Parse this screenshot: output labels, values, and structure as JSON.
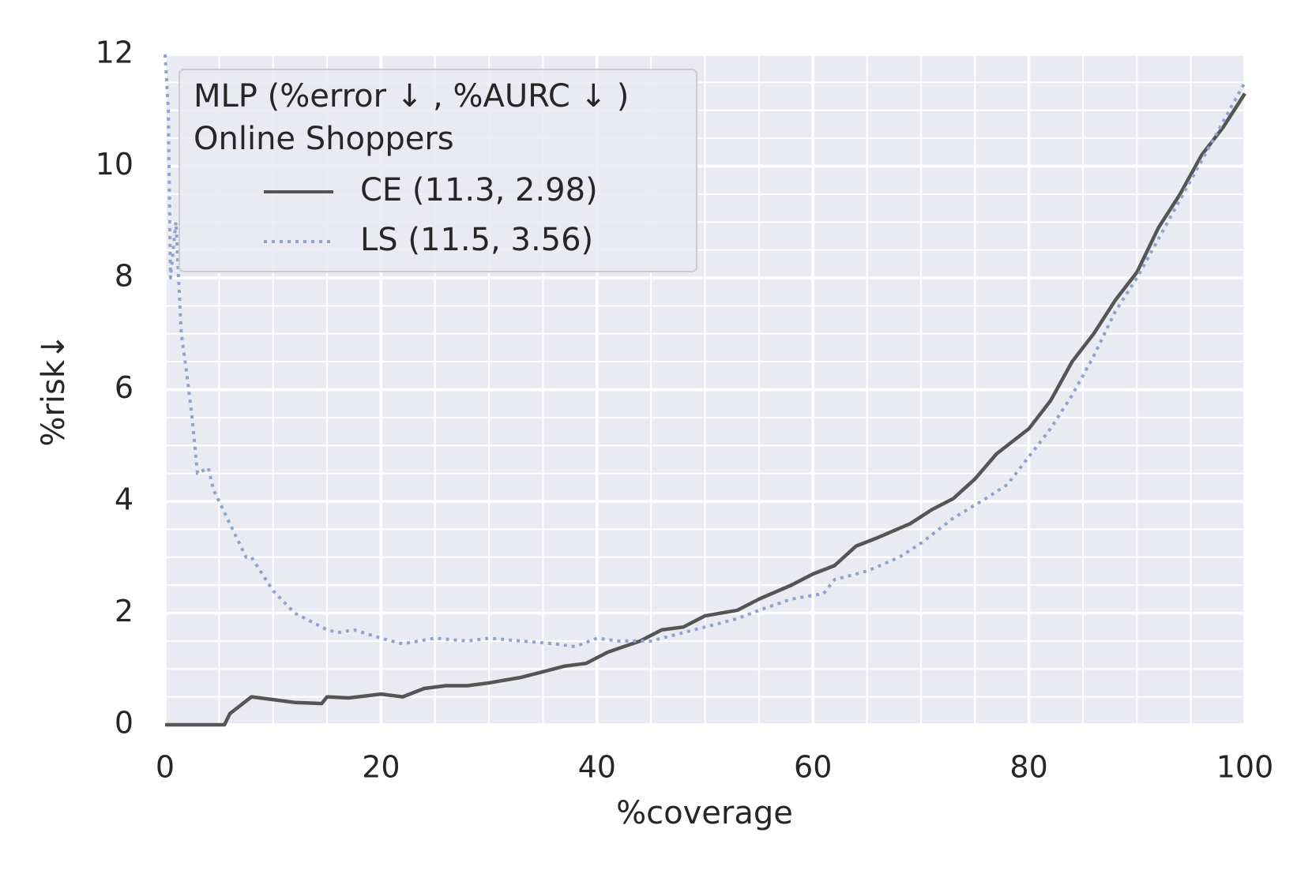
{
  "chart_data": {
    "type": "line",
    "xlabel": "%coverage",
    "ylabel": "%risk↓",
    "legend_title": [
      "MLP (%error ↓ , %AURC ↓ )",
      "Online Shoppers"
    ],
    "legend_position": "upper left",
    "grid": true,
    "minor_grid": {
      "x": 5,
      "y": 0.5
    },
    "xlim": [
      0,
      100
    ],
    "xticks": [
      0,
      20,
      40,
      60,
      80,
      100
    ],
    "ylim": [
      0,
      12
    ],
    "yticks": [
      0,
      2,
      4,
      6,
      8,
      10,
      12
    ],
    "series": [
      {
        "name": "CE (11.3, 2.98)",
        "color": "#555555",
        "dash": "solid",
        "x": [
          0,
          5.5,
          6,
          7,
          8,
          10,
          12,
          14.5,
          15,
          17,
          20,
          22,
          24,
          26,
          28,
          30,
          33,
          35,
          37,
          39,
          41,
          44,
          46,
          48,
          50,
          53,
          55,
          58,
          60,
          62,
          64,
          66,
          69,
          71,
          73,
          75,
          77,
          80,
          82,
          84,
          86,
          88,
          90,
          92,
          94,
          96,
          98,
          100
        ],
        "values": [
          0,
          0,
          0.2,
          0.35,
          0.5,
          0.45,
          0.4,
          0.38,
          0.5,
          0.48,
          0.55,
          0.5,
          0.65,
          0.7,
          0.7,
          0.75,
          0.85,
          0.95,
          1.05,
          1.1,
          1.3,
          1.5,
          1.7,
          1.75,
          1.95,
          2.05,
          2.25,
          2.5,
          2.7,
          2.85,
          3.2,
          3.35,
          3.6,
          3.85,
          4.05,
          4.4,
          4.85,
          5.3,
          5.8,
          6.5,
          7.0,
          7.6,
          8.1,
          8.9,
          9.5,
          10.2,
          10.7,
          11.3
        ]
      },
      {
        "name": "LS (11.5, 3.56)",
        "color": "#8fa3cc",
        "dash": "dotted",
        "x": [
          0,
          0.3,
          0.5,
          1,
          1.5,
          2,
          2.5,
          3,
          4,
          4.5,
          5.5,
          7.5,
          8,
          10,
          12,
          15,
          16,
          17.5,
          20,
          22,
          25,
          28,
          30,
          33,
          36,
          38,
          40,
          42,
          45,
          48,
          50,
          53,
          55,
          58,
          61,
          62,
          65,
          68,
          70,
          73,
          76,
          78,
          80,
          82,
          84,
          86,
          88,
          90,
          92,
          94,
          96,
          98,
          100
        ],
        "values": [
          12,
          11,
          8,
          9,
          7,
          6.3,
          5.5,
          4.5,
          4.6,
          4.2,
          3.8,
          3.0,
          3.0,
          2.4,
          2.0,
          1.7,
          1.65,
          1.7,
          1.55,
          1.45,
          1.55,
          1.5,
          1.55,
          1.5,
          1.45,
          1.4,
          1.55,
          1.5,
          1.5,
          1.65,
          1.75,
          1.9,
          2.05,
          2.25,
          2.35,
          2.6,
          2.75,
          3.0,
          3.25,
          3.7,
          4.05,
          4.3,
          4.8,
          5.3,
          5.9,
          6.6,
          7.4,
          8.0,
          8.7,
          9.4,
          10.1,
          10.8,
          11.5
        ]
      }
    ]
  }
}
